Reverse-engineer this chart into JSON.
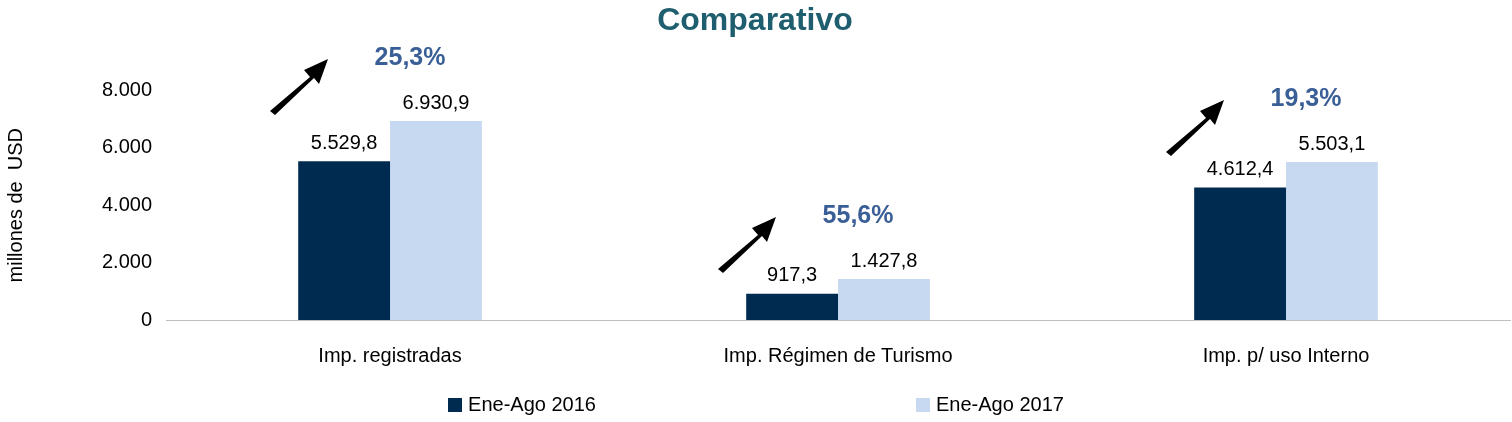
{
  "chart_data": {
    "type": "bar",
    "title": "Comparativo",
    "ylabel": "millones de  USD",
    "categories": [
      "Imp. registradas",
      "Imp. Régimen de Turismo",
      "Imp. p/ uso Interno"
    ],
    "series": [
      {
        "name": "Ene-Ago 2016",
        "color": "#002b50",
        "values": [
          5529.8,
          917.3,
          4612.4
        ],
        "value_labels": [
          "5.529,8",
          "917,3",
          "4.612,4"
        ]
      },
      {
        "name": "Ene-Ago 2017",
        "color": "#c6d9f0",
        "values": [
          6930.9,
          1427.8,
          5503.1
        ],
        "value_labels": [
          "6.930,9",
          "1.427,8",
          "5.503,1"
        ]
      }
    ],
    "ylim": [
      0,
      8000
    ],
    "yticks": [
      {
        "value": 0,
        "label": "0"
      },
      {
        "value": 2000,
        "label": "2.000"
      },
      {
        "value": 4000,
        "label": "4.000"
      },
      {
        "value": 6000,
        "label": "6.000"
      },
      {
        "value": 8000,
        "label": "8.000"
      }
    ],
    "annotations": [
      "25,3%",
      "55,6%",
      "19,3%"
    ],
    "grid": false,
    "legend": "bottom"
  }
}
